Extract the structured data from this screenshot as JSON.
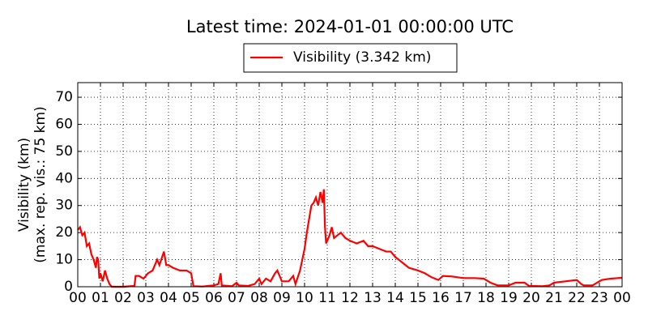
{
  "chart_data": {
    "type": "line",
    "title": "Latest time: 2024-01-01 00:00:00 UTC",
    "ylabel": [
      "Visibility (km)",
      "(max. rep. vis.: 75 km)"
    ],
    "grid": true,
    "legend": "top",
    "xlim": [
      0,
      24
    ],
    "ylim": [
      0,
      75.4
    ],
    "xticks": [
      {
        "value": 0,
        "label": "00"
      },
      {
        "value": 1,
        "label": "01"
      },
      {
        "value": 2,
        "label": "02"
      },
      {
        "value": 3,
        "label": "03"
      },
      {
        "value": 4,
        "label": "04"
      },
      {
        "value": 5,
        "label": "05"
      },
      {
        "value": 6,
        "label": "06"
      },
      {
        "value": 7,
        "label": "07"
      },
      {
        "value": 8,
        "label": "08"
      },
      {
        "value": 9,
        "label": "09"
      },
      {
        "value": 10,
        "label": "10"
      },
      {
        "value": 11,
        "label": "11"
      },
      {
        "value": 12,
        "label": "12"
      },
      {
        "value": 13,
        "label": "13"
      },
      {
        "value": 14,
        "label": "14"
      },
      {
        "value": 15,
        "label": "15"
      },
      {
        "value": 16,
        "label": "16"
      },
      {
        "value": 17,
        "label": "17"
      },
      {
        "value": 18,
        "label": "18"
      },
      {
        "value": 19,
        "label": "19"
      },
      {
        "value": 20,
        "label": "20"
      },
      {
        "value": 21,
        "label": "21"
      },
      {
        "value": 22,
        "label": "22"
      },
      {
        "value": 23,
        "label": "23"
      },
      {
        "value": 24,
        "label": "00"
      }
    ],
    "yticks": [
      0,
      10,
      20,
      30,
      40,
      50,
      60,
      70
    ],
    "x": [
      0,
      0.1,
      0.2,
      0.3,
      0.4,
      0.5,
      0.6,
      0.7,
      0.8,
      0.85,
      0.9,
      0.95,
      1.0,
      1.1,
      1.2,
      1.3,
      1.4,
      1.5,
      2.0,
      2.5,
      2.55,
      2.7,
      2.9,
      3.1,
      3.3,
      3.5,
      3.6,
      3.8,
      3.9,
      4.0,
      4.2,
      4.5,
      4.8,
      5.0,
      5.1,
      5.5,
      6.0,
      6.2,
      6.3,
      6.35,
      6.8,
      7.0,
      7.1,
      7.5,
      7.8,
      8.0,
      8.1,
      8.3,
      8.5,
      8.7,
      8.8,
      8.9,
      9.0,
      9.3,
      9.5,
      9.6,
      9.8,
      9.9,
      10.0,
      10.1,
      10.2,
      10.3,
      10.4,
      10.5,
      10.6,
      10.7,
      10.8,
      10.85,
      10.9,
      10.95,
      11.1,
      11.2,
      11.3,
      11.6,
      11.8,
      12.0,
      12.3,
      12.6,
      12.8,
      13.0,
      13.3,
      13.6,
      13.8,
      14.0,
      14.3,
      14.6,
      15.0,
      15.3,
      15.6,
      15.9,
      16.1,
      16.5,
      17.0,
      17.5,
      17.9,
      18.2,
      18.5,
      19.0,
      19.3,
      19.7,
      19.9,
      20.5,
      20.8,
      21.0,
      21.5,
      22.0,
      22.2,
      22.3,
      22.7,
      22.9,
      23.1,
      23.5,
      24.0
    ],
    "series": [
      {
        "name": "Visibility (3.342 km)",
        "color": "#ff0000",
        "values": [
          21,
          22,
          19,
          20,
          15,
          16,
          12,
          10,
          7,
          11,
          10,
          3,
          5,
          2,
          6,
          3,
          1,
          0,
          0,
          0.3,
          4,
          4,
          3,
          5,
          6,
          10,
          8,
          13,
          8,
          8,
          7,
          6,
          6,
          5,
          0.2,
          0.1,
          0.5,
          1,
          5,
          0.5,
          0.2,
          1.5,
          0.5,
          0.3,
          1,
          3,
          1,
          3,
          2,
          5,
          6,
          4,
          2,
          2,
          4,
          1,
          6,
          10,
          14,
          20,
          25,
          30,
          31,
          33,
          30,
          35,
          31,
          36,
          22,
          16,
          19,
          22,
          18,
          20,
          18,
          17,
          16,
          17,
          15,
          15,
          14,
          13,
          13,
          11,
          9,
          7,
          6,
          5,
          3.5,
          2.5,
          4,
          3.8,
          3.2,
          3.2,
          3,
          1.5,
          0.5,
          0.5,
          1.5,
          1.5,
          0.3,
          0.2,
          0.5,
          1.5,
          2,
          2.5,
          1,
          0.5,
          0.5,
          1.5,
          2.5,
          3,
          3.3
        ]
      }
    ]
  }
}
